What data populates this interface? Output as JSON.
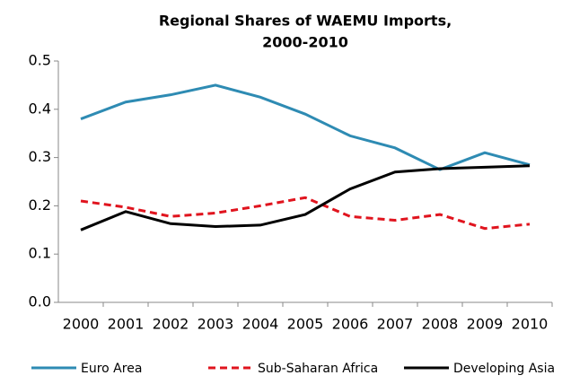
{
  "chart_data": {
    "type": "line",
    "title": [
      "Regional Shares of WAEMU Imports,",
      "2000-2010"
    ],
    "categories": [
      "2000",
      "2001",
      "2002",
      "2003",
      "2004",
      "2005",
      "2006",
      "2007",
      "2008",
      "2009",
      "2010"
    ],
    "series": [
      {
        "name": "Euro Area",
        "color": "#2e8bb3",
        "dash": "solid",
        "values": [
          0.38,
          0.415,
          0.43,
          0.45,
          0.425,
          0.39,
          0.345,
          0.32,
          0.275,
          0.31,
          0.285
        ]
      },
      {
        "name": "Sub-Saharan Africa",
        "color": "#e0141e",
        "dash": "dashed",
        "values": [
          0.21,
          0.197,
          0.178,
          0.185,
          0.2,
          0.217,
          0.178,
          0.17,
          0.182,
          0.153,
          0.162
        ]
      },
      {
        "name": "Developing Asia",
        "color": "#000000",
        "dash": "solid",
        "values": [
          0.15,
          0.188,
          0.163,
          0.157,
          0.16,
          0.182,
          0.235,
          0.27,
          0.277,
          0.28,
          0.283
        ]
      }
    ],
    "ylim": [
      0,
      0.5
    ],
    "yticks": [
      {
        "value": 0,
        "label": "0.0"
      },
      0.1,
      0.2,
      0.3,
      0.4,
      0.5
    ],
    "grid": false,
    "legend": "bottom"
  }
}
